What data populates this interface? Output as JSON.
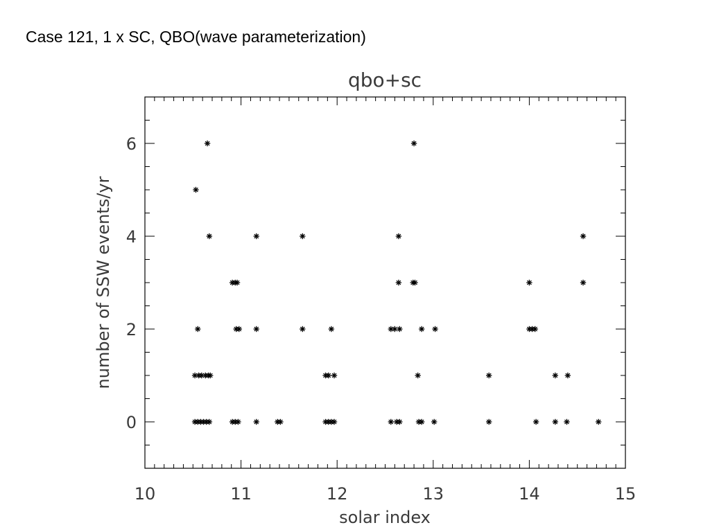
{
  "slide": {
    "title": "Case 121, 1 x SC, QBO(wave parameterization)"
  },
  "chart_data": {
    "type": "scatter",
    "title": "qbo+sc",
    "xlabel": "solar index",
    "ylabel": "number of SSW events/yr",
    "xlim": [
      10,
      15
    ],
    "ylim": [
      -1,
      7
    ],
    "xticks": [
      "10",
      "11",
      "12",
      "13",
      "14",
      "15"
    ],
    "yticks": [
      "0",
      "2",
      "4",
      "6"
    ],
    "marker": "asterisk",
    "color": "#000000",
    "grid": false,
    "points": [
      {
        "x": 10.53,
        "y": 5
      },
      {
        "x": 10.65,
        "y": 6
      },
      {
        "x": 10.67,
        "y": 4
      },
      {
        "x": 10.55,
        "y": 2
      },
      {
        "x": 10.52,
        "y": 1
      },
      {
        "x": 10.56,
        "y": 1
      },
      {
        "x": 10.59,
        "y": 1
      },
      {
        "x": 10.63,
        "y": 1
      },
      {
        "x": 10.66,
        "y": 1
      },
      {
        "x": 10.68,
        "y": 1
      },
      {
        "x": 10.52,
        "y": 0
      },
      {
        "x": 10.55,
        "y": 0
      },
      {
        "x": 10.58,
        "y": 0
      },
      {
        "x": 10.61,
        "y": 0
      },
      {
        "x": 10.64,
        "y": 0
      },
      {
        "x": 10.67,
        "y": 0
      },
      {
        "x": 10.91,
        "y": 3
      },
      {
        "x": 10.94,
        "y": 3
      },
      {
        "x": 10.96,
        "y": 3
      },
      {
        "x": 10.95,
        "y": 2
      },
      {
        "x": 10.98,
        "y": 2
      },
      {
        "x": 10.91,
        "y": 0
      },
      {
        "x": 10.94,
        "y": 0
      },
      {
        "x": 10.97,
        "y": 0
      },
      {
        "x": 11.16,
        "y": 4
      },
      {
        "x": 11.16,
        "y": 2
      },
      {
        "x": 11.16,
        "y": 0
      },
      {
        "x": 11.38,
        "y": 0
      },
      {
        "x": 11.41,
        "y": 0
      },
      {
        "x": 11.64,
        "y": 4
      },
      {
        "x": 11.64,
        "y": 2
      },
      {
        "x": 11.88,
        "y": 1
      },
      {
        "x": 11.91,
        "y": 1
      },
      {
        "x": 11.97,
        "y": 1
      },
      {
        "x": 11.94,
        "y": 2
      },
      {
        "x": 11.88,
        "y": 0
      },
      {
        "x": 11.91,
        "y": 0
      },
      {
        "x": 11.94,
        "y": 0
      },
      {
        "x": 11.97,
        "y": 0
      },
      {
        "x": 12.8,
        "y": 6
      },
      {
        "x": 12.64,
        "y": 4
      },
      {
        "x": 12.64,
        "y": 3
      },
      {
        "x": 12.79,
        "y": 3
      },
      {
        "x": 12.81,
        "y": 3
      },
      {
        "x": 12.56,
        "y": 2
      },
      {
        "x": 12.6,
        "y": 2
      },
      {
        "x": 12.65,
        "y": 2
      },
      {
        "x": 12.88,
        "y": 2
      },
      {
        "x": 13.02,
        "y": 2
      },
      {
        "x": 12.84,
        "y": 1
      },
      {
        "x": 12.56,
        "y": 0
      },
      {
        "x": 12.62,
        "y": 0
      },
      {
        "x": 12.65,
        "y": 0
      },
      {
        "x": 12.85,
        "y": 0
      },
      {
        "x": 12.88,
        "y": 0
      },
      {
        "x": 13.01,
        "y": 0
      },
      {
        "x": 13.58,
        "y": 1
      },
      {
        "x": 13.58,
        "y": 0
      },
      {
        "x": 14.0,
        "y": 3
      },
      {
        "x": 14.0,
        "y": 2
      },
      {
        "x": 14.03,
        "y": 2
      },
      {
        "x": 14.06,
        "y": 2
      },
      {
        "x": 14.07,
        "y": 0
      },
      {
        "x": 14.27,
        "y": 1
      },
      {
        "x": 14.4,
        "y": 1
      },
      {
        "x": 14.27,
        "y": 0
      },
      {
        "x": 14.39,
        "y": 0
      },
      {
        "x": 14.56,
        "y": 4
      },
      {
        "x": 14.56,
        "y": 3
      },
      {
        "x": 14.72,
        "y": 0
      }
    ]
  }
}
